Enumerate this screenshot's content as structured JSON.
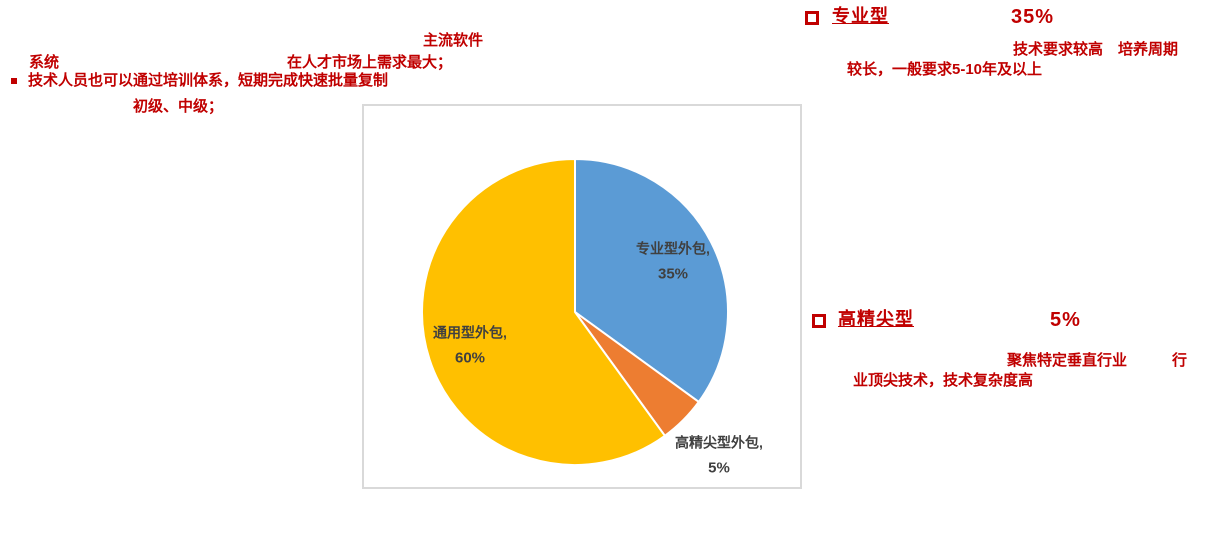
{
  "colors": {
    "annotation_red": "#C00000",
    "pie_label_gray": "#404040",
    "chart_box_border": "#D9D9D9",
    "slice_blue": "#5B9BD5",
    "slice_orange": "#ED7D31",
    "slice_yellow": "#FFC000",
    "background": "#FFFFFF"
  },
  "annotations_left": {
    "mainstream_software": "主流软件",
    "system": "系统",
    "market_demand": "在人才市场上需求最大；",
    "bullet_icon": "square-bullet-filled",
    "training_line": "技术人员也可以通过培训体系，短期完成快速批量复制",
    "levels_line": "初级、中级；"
  },
  "right_sections": [
    {
      "bullet_icon": "square-outline-bullet",
      "title": "专业型",
      "value": "35%",
      "desc_line1": "技术要求较高　培养周期",
      "desc_line2": "较长，一般要求5-10年及以上"
    },
    {
      "bullet_icon": "square-outline-bullet",
      "title": "高精尖型",
      "value": "5%",
      "desc_line1": "聚焦特定垂直行业　　　行",
      "desc_line2": "业顶尖技术，技术复杂度高"
    }
  ],
  "chart_data": {
    "type": "pie",
    "title": "",
    "categories": [
      "专业型外包",
      "高精尖型外包",
      "通用型外包"
    ],
    "values": [
      35,
      5,
      60
    ],
    "slices": [
      {
        "label": "专业型外包",
        "value": 35,
        "color": "#5B9BD5",
        "label_position": "inside"
      },
      {
        "label": "高精尖型外包",
        "value": 5,
        "color": "#ED7D31",
        "label_position": "outside"
      },
      {
        "label": "通用型外包",
        "value": 60,
        "color": "#FFC000",
        "label_position": "inside"
      }
    ],
    "start_angle_deg": 0,
    "direction": "clockwise",
    "label_format": "{label}, {value}%",
    "label_color": "#404040",
    "slice_border_color": "#FFFFFF",
    "legend": "none",
    "grid": false
  }
}
